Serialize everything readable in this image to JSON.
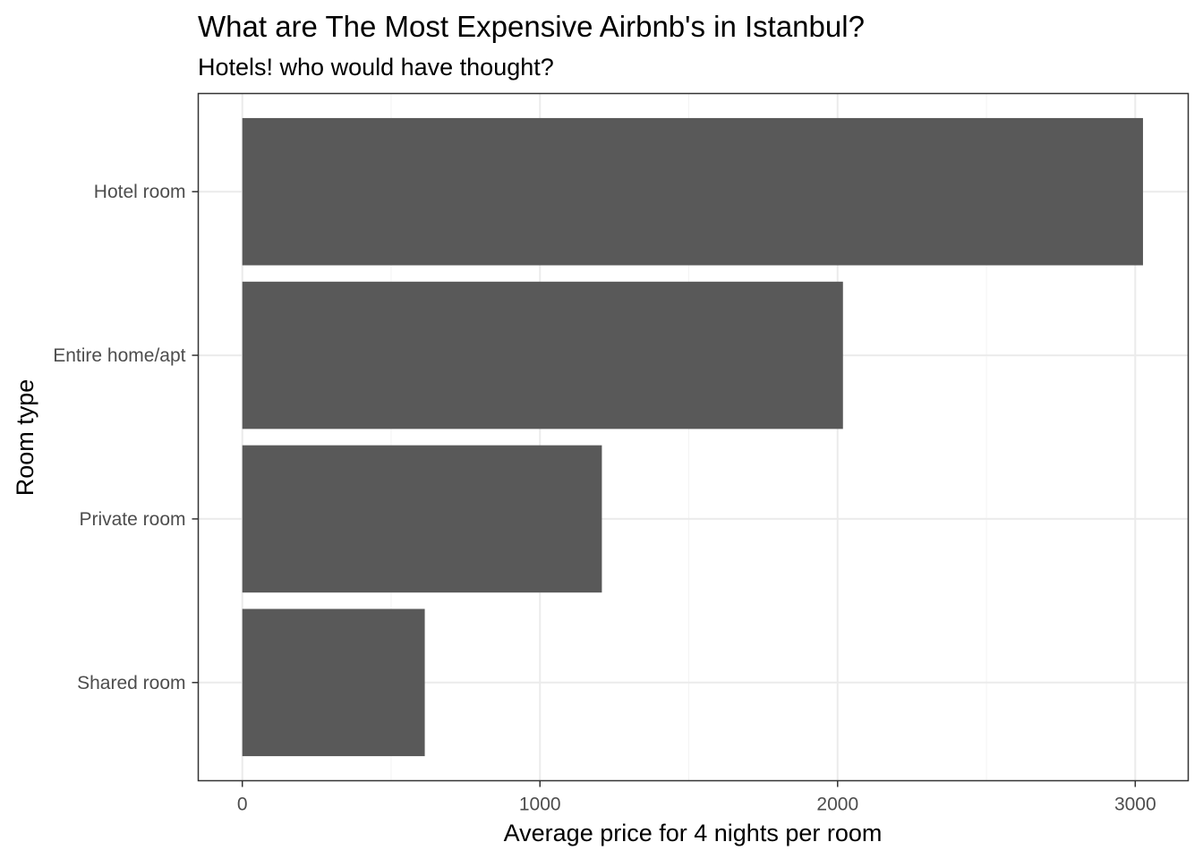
{
  "chart_data": {
    "type": "bar",
    "orientation": "horizontal",
    "title": "What are The Most Expensive Airbnb's in Istanbul?",
    "subtitle": "Hotels! who would have thought?",
    "xlabel": "Average price for 4 nights per room",
    "ylabel": "Room type",
    "categories": [
      "Hotel room",
      "Entire home/apt",
      "Private room",
      "Shared room"
    ],
    "values": [
      3026,
      2018,
      1208,
      613
    ],
    "xlim": [
      -148,
      3178
    ],
    "x_ticks": [
      0,
      1000,
      2000,
      3000
    ],
    "x_minor_ticks": [
      500,
      1500,
      2500
    ],
    "grid": true,
    "legend": "none",
    "colors": {
      "bar": "#595959",
      "grid_major": "#ebebeb",
      "grid_minor": "#f3f3f3",
      "panel_border": "#333333",
      "tick_label": "#4d4d4d"
    }
  }
}
